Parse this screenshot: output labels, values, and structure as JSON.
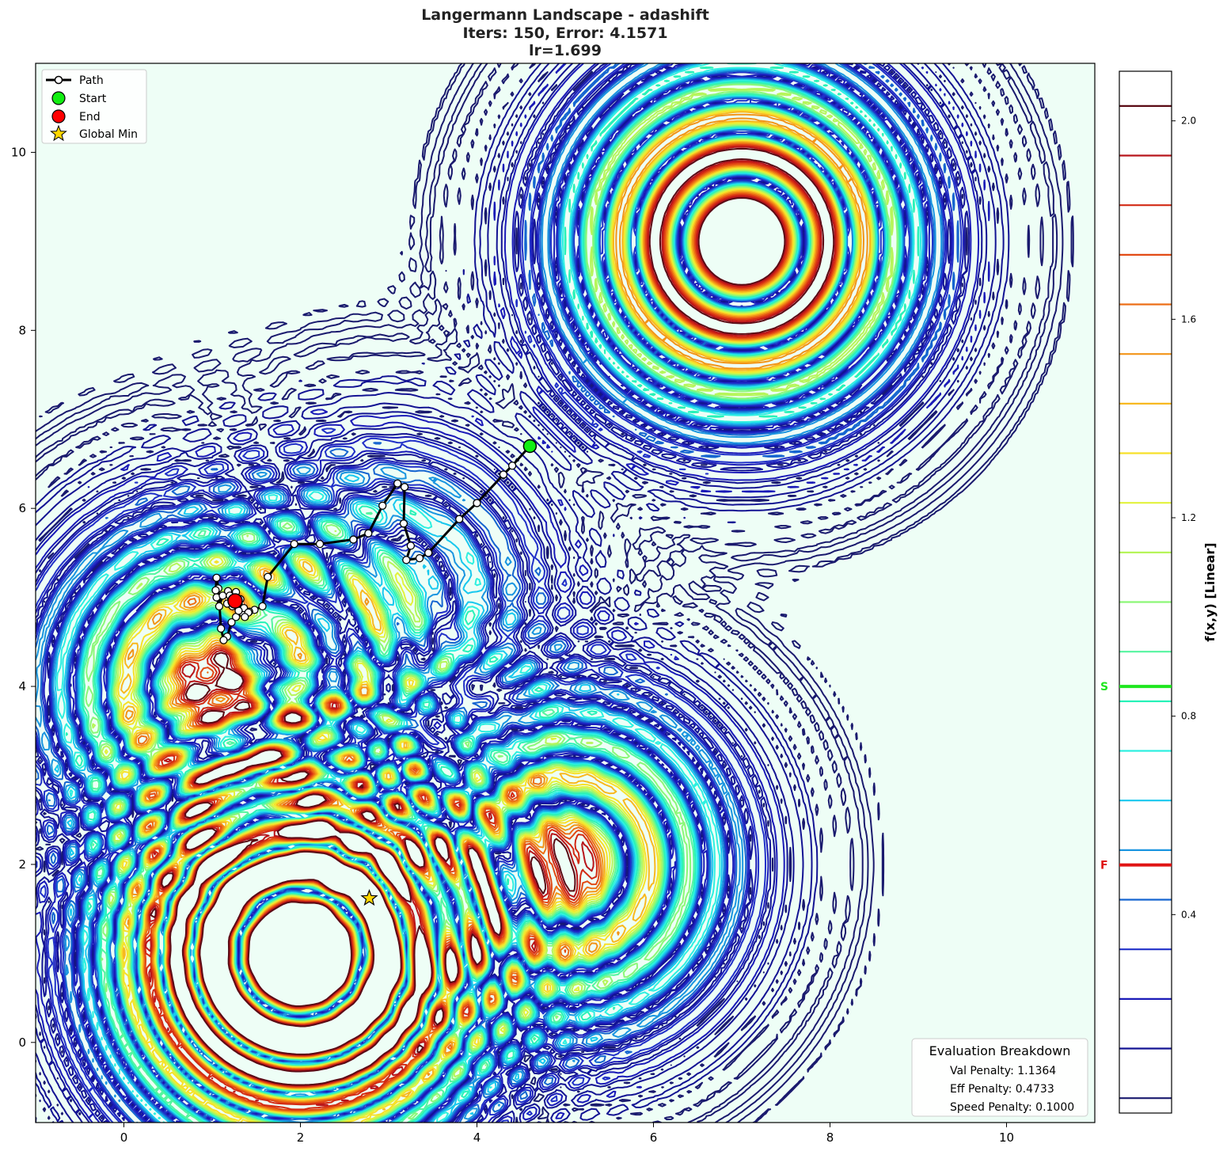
{
  "chart_data": {
    "type": "contour",
    "title_lines": [
      "Langermann Landscape - adashift",
      "Iters: 150, Error: 4.1571",
      "lr=1.699"
    ],
    "xlim": [
      -1,
      11
    ],
    "ylim": [
      -0.9,
      11
    ],
    "x_ticks": [
      0,
      2,
      4,
      6,
      8,
      10
    ],
    "y_ticks": [
      0,
      2,
      4,
      6,
      8,
      10
    ],
    "x_tick_labels": [
      "0",
      "2",
      "4",
      "6",
      "8",
      "10"
    ],
    "y_tick_labels": [
      "0",
      "2",
      "4",
      "6",
      "8",
      "10"
    ],
    "function": {
      "a": [
        [
          3,
          5
        ],
        [
          5,
          2
        ],
        [
          2,
          1
        ],
        [
          1,
          4
        ],
        [
          7,
          9
        ]
      ],
      "c": [
        1,
        2,
        5,
        2,
        3
      ]
    },
    "colorbar": {
      "label": "f(x,y) [Linear]",
      "range": [
        0.0,
        2.1
      ],
      "ticks": [
        0.4,
        0.8,
        1.2,
        1.6,
        2.0
      ],
      "tick_labels": [
        "0.4",
        "0.8",
        "1.2",
        "1.6",
        "2.0"
      ],
      "level_values": [
        0.03,
        0.13,
        0.23,
        0.33,
        0.43,
        0.53,
        0.63,
        0.73,
        0.83,
        0.93,
        1.03,
        1.13,
        1.23,
        1.33,
        1.43,
        1.53,
        1.63,
        1.73,
        1.83,
        1.93,
        2.03
      ],
      "level_colors": [
        "#1a1a6e",
        "#131393",
        "#1a1ab8",
        "#2030c8",
        "#1565d0",
        "#1a95e0",
        "#18c8ee",
        "#2ef0e0",
        "#28f2b8",
        "#55f5a0",
        "#8cf778",
        "#b6f55a",
        "#e2f23c",
        "#f7e02a",
        "#f8b820",
        "#f29418",
        "#ec6e16",
        "#e24a14",
        "#d22a14",
        "#b8141a",
        "#5a0a14"
      ],
      "start_marker": {
        "label": "S",
        "value": 0.86,
        "color": "#1ee61e"
      },
      "end_marker": {
        "label": "F",
        "value": 0.5,
        "color": "#e01414"
      }
    },
    "path": {
      "x": [
        4.6,
        4.4,
        4.3,
        4.0,
        3.8,
        3.45,
        3.35,
        3.2,
        3.25,
        3.17,
        3.18,
        3.1,
        2.93,
        2.77,
        2.6,
        2.22,
        1.93,
        1.63,
        1.57,
        1.48,
        1.42,
        1.35,
        1.27,
        1.22,
        1.17,
        1.13,
        1.1,
        1.07,
        1.05,
        1.04,
        1.05,
        1.08,
        1.12,
        1.18,
        1.25,
        1.3,
        1.36,
        1.41,
        1.37,
        1.3,
        1.23,
        1.17,
        1.2,
        1.27,
        1.32,
        1.26
      ],
      "y": [
        6.7,
        6.48,
        6.38,
        6.06,
        5.88,
        5.5,
        5.44,
        5.42,
        5.58,
        5.83,
        6.24,
        6.28,
        6.03,
        5.72,
        5.65,
        5.6,
        5.6,
        5.23,
        4.9,
        4.86,
        4.84,
        4.82,
        4.78,
        4.72,
        4.56,
        4.52,
        4.65,
        5.1,
        5.22,
        5.08,
        5.0,
        4.9,
        5.02,
        5.07,
        5.0,
        4.93,
        4.88,
        4.83,
        4.78,
        4.85,
        4.9,
        4.93,
        5.02,
        5.06,
        4.98,
        4.96
      ],
      "start": [
        4.6,
        6.7
      ],
      "end": [
        1.26,
        4.96
      ]
    },
    "global_min": [
      2.78,
      1.62
    ],
    "legend": {
      "position": "upper-left",
      "entries": [
        "Path",
        "Start",
        "End",
        "Global Min"
      ]
    }
  },
  "evaluation": {
    "title": "Evaluation Breakdown",
    "lines": [
      "Val Penalty: 1.1364",
      "Eff Penalty: 0.4733",
      "Speed Penalty: 0.1000"
    ]
  },
  "colors": {
    "path": "#000000",
    "start": "#11ee11",
    "end": "#ff0000",
    "global_min": "#ffd700",
    "background_tint": "#eefef6"
  }
}
